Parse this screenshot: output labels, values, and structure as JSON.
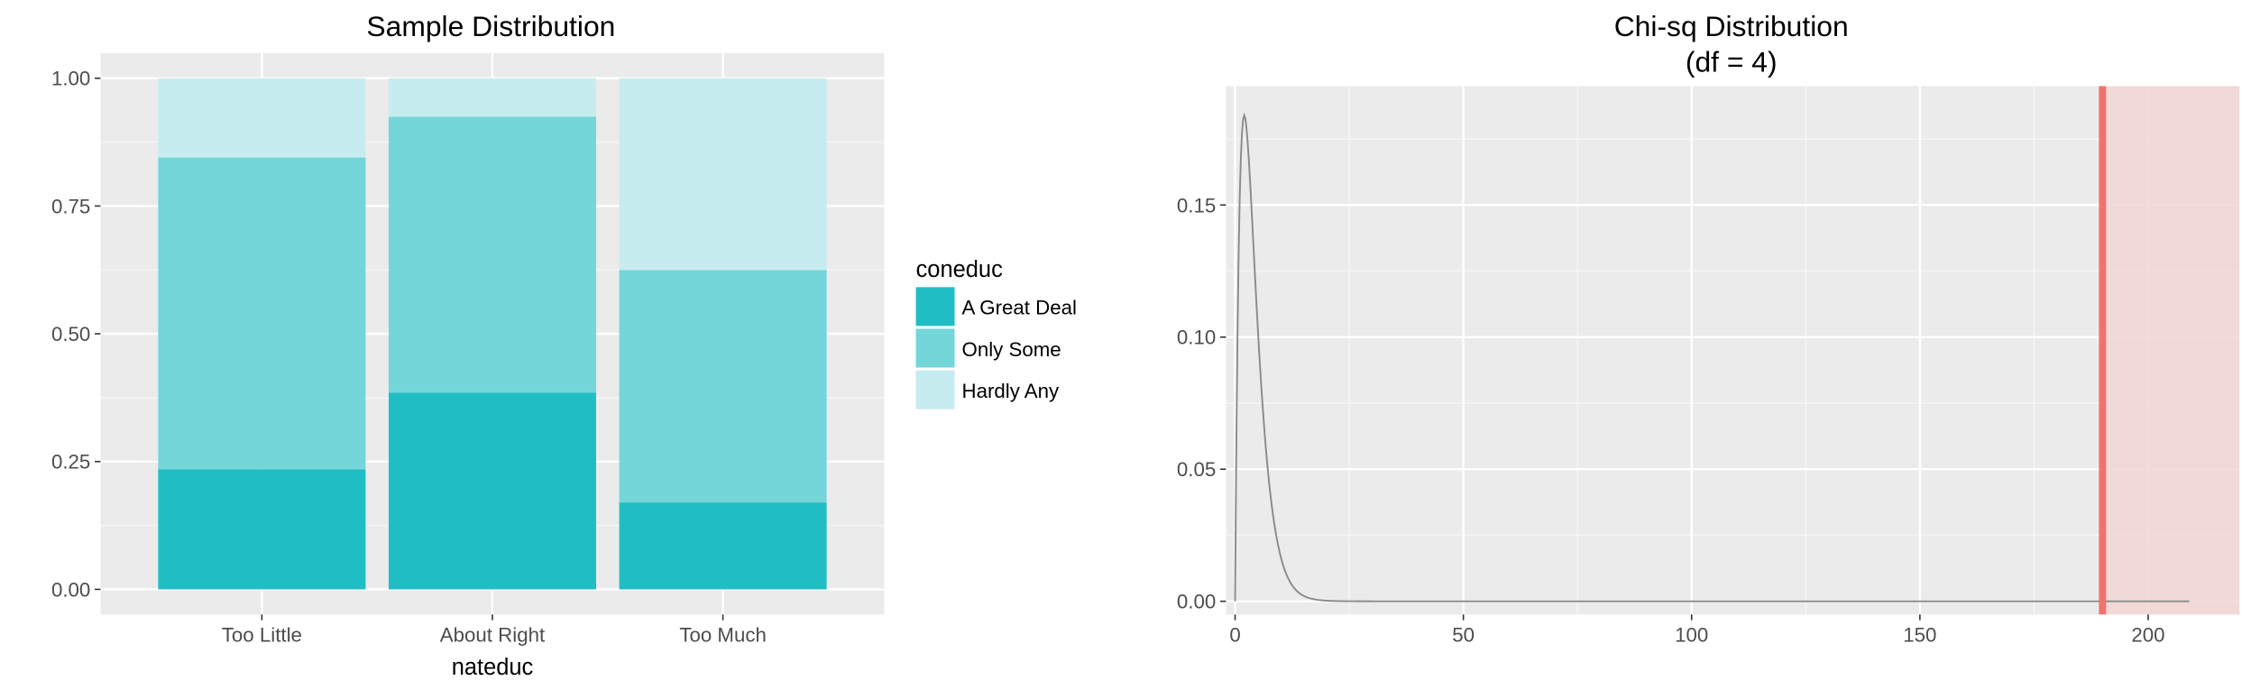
{
  "chart_data": [
    {
      "type": "bar",
      "stacked": true,
      "title": "Sample Distribution",
      "xlabel": "nateduc",
      "ylabel": "",
      "ylim": [
        0,
        1
      ],
      "yticks": [
        "0.00",
        "0.25",
        "0.50",
        "0.75",
        "1.00"
      ],
      "ytick_values": [
        0,
        0.25,
        0.5,
        0.75,
        1
      ],
      "categories": [
        "Too Little",
        "About Right",
        "Too Much"
      ],
      "legend": {
        "title": "coneduc",
        "position": "right"
      },
      "series": [
        {
          "name": "A Great Deal",
          "values": [
            0.235,
            0.385,
            0.17
          ],
          "color": "#20bec4"
        },
        {
          "name": "Only Some",
          "values": [
            0.61,
            0.54,
            0.455
          ],
          "color": "#74d6d9"
        },
        {
          "name": "Hardly Any",
          "values": [
            0.155,
            0.075,
            0.375
          ],
          "color": "#c7ecef"
        }
      ],
      "grid": true,
      "panel_color": "#ebebeb"
    },
    {
      "type": "line",
      "title": "Chi-sq Distribution\n(df = 4)",
      "title_lines": [
        "Chi-sq Distribution",
        "(df = 4)"
      ],
      "xlabel": "",
      "ylabel": "",
      "df": 4,
      "xlim": [
        -2,
        220
      ],
      "ylim": [
        -0.005,
        0.195
      ],
      "xticks": [
        "0",
        "50",
        "100",
        "150",
        "200"
      ],
      "xtick_values": [
        0,
        50,
        100,
        150,
        200
      ],
      "yticks": [
        "0.00",
        "0.05",
        "0.10",
        "0.15"
      ],
      "ytick_values": [
        0,
        0.05,
        0.1,
        0.15
      ],
      "curve_range": [
        0,
        209
      ],
      "line_color": "#8a8a8a",
      "test_statistic": 190,
      "critical_line_color": "#f0736e",
      "shaded_region": [
        190,
        220
      ],
      "shade_color": "#f2d6d5",
      "grid": true,
      "panel_color": "#ebebeb"
    }
  ]
}
